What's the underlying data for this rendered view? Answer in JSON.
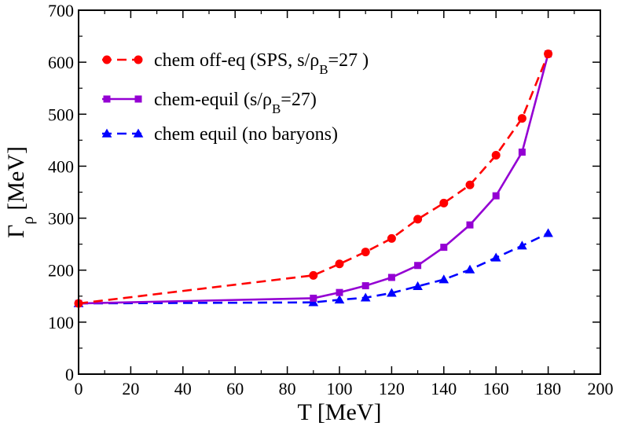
{
  "chart_data": {
    "type": "line",
    "title": "",
    "xlabel": "T [MeV]",
    "ylabel": "Γρ [MeV]",
    "xlim": [
      0,
      200
    ],
    "ylim": [
      0,
      700
    ],
    "xticks": [
      0,
      20,
      40,
      60,
      80,
      100,
      120,
      140,
      160,
      180,
      200
    ],
    "yticks": [
      0,
      100,
      200,
      300,
      400,
      500,
      600,
      700
    ],
    "grid": false,
    "legend_position": "top-left",
    "series": [
      {
        "name": "chem off-eq (SPS, s/ρB=27 )",
        "color": "#ff0000",
        "line": "dashed",
        "marker": "circle",
        "x": [
          0,
          90,
          100,
          110,
          120,
          130,
          140,
          150,
          160,
          170,
          180
        ],
        "y": [
          136,
          190,
          212,
          235,
          261,
          298,
          329,
          364,
          421,
          492,
          616
        ]
      },
      {
        "name": "chem-equil (s/ρB=27)",
        "color": "#9400d3",
        "line": "solid",
        "marker": "square",
        "x": [
          0,
          90,
          100,
          110,
          120,
          130,
          140,
          150,
          160,
          170,
          180
        ],
        "y": [
          136,
          146,
          157,
          170,
          186,
          209,
          244,
          287,
          343,
          427,
          616
        ]
      },
      {
        "name": "chem equil  (no baryons)",
        "color": "#0000ff",
        "line": "dashed",
        "marker": "triangle",
        "x": [
          0,
          90,
          100,
          110,
          120,
          130,
          140,
          150,
          160,
          170,
          180
        ],
        "y": [
          136,
          138,
          143,
          147,
          156,
          169,
          182,
          201,
          224,
          247,
          271
        ]
      }
    ]
  }
}
